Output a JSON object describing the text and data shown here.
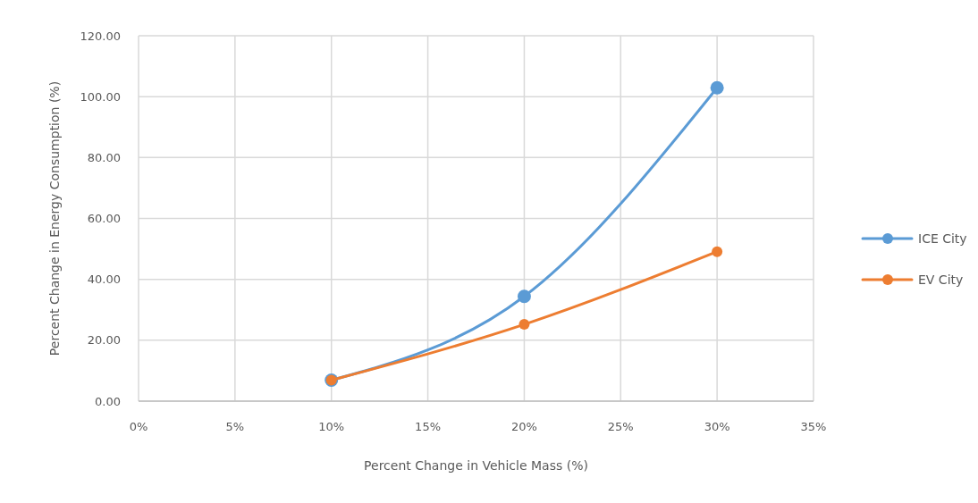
{
  "chart_data": {
    "type": "line",
    "xlabel": "Percent Change in Vehicle Mass (%)",
    "ylabel": "Percent Change in Energy Consumption (%)",
    "x": [
      10,
      20,
      30
    ],
    "series": [
      {
        "name": "ICE City",
        "color": "#5b9bd5",
        "values": [
          6.9,
          34.4,
          102.9
        ]
      },
      {
        "name": "EV City",
        "color": "#ed7d31",
        "values": [
          6.9,
          25.2,
          49.1
        ]
      }
    ],
    "xlim": [
      0,
      35
    ],
    "xticks": [
      {
        "value": 0,
        "label": "0%"
      },
      {
        "value": 5,
        "label": "5%"
      },
      {
        "value": 10,
        "label": "10%"
      },
      {
        "value": 15,
        "label": "15%"
      },
      {
        "value": 20,
        "label": "20%"
      },
      {
        "value": 25,
        "label": "25%"
      },
      {
        "value": 30,
        "label": "30%"
      },
      {
        "value": 35,
        "label": "35%"
      }
    ],
    "ylim": [
      0,
      120
    ],
    "yticks": [
      {
        "value": 0,
        "label": "0.00"
      },
      {
        "value": 20,
        "label": "20.00"
      },
      {
        "value": 40,
        "label": "40.00"
      },
      {
        "value": 60,
        "label": "60.00"
      },
      {
        "value": 80,
        "label": "80.00"
      },
      {
        "value": 100,
        "label": "100.00"
      },
      {
        "value": 120,
        "label": "120.00"
      }
    ],
    "grid": true,
    "legend": "right",
    "marker": "circle",
    "line_style": "solid"
  }
}
